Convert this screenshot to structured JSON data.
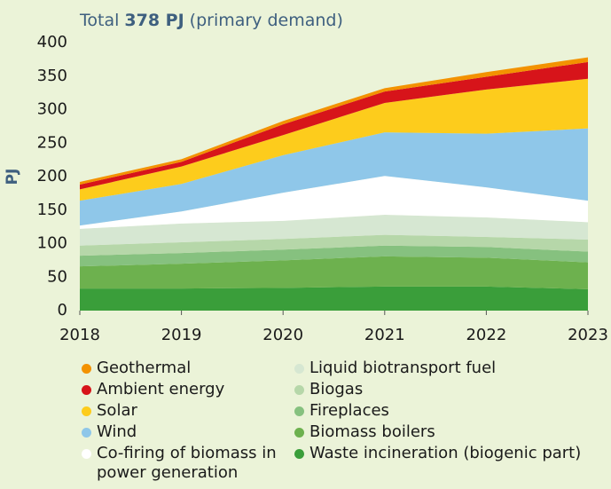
{
  "chart_data": {
    "type": "stacked_area",
    "title_prefix": "Total",
    "title_bold": "378 PJ",
    "title_suffix": "(primary demand)",
    "y_label": "PJ",
    "categories": [
      "2018",
      "2019",
      "2020",
      "2021",
      "2022",
      "2023"
    ],
    "ylim": [
      0,
      400
    ],
    "yticks": [
      0,
      50,
      100,
      150,
      200,
      250,
      300,
      350,
      400
    ],
    "series": [
      {
        "name": "Waste incineration (biogenic part)",
        "color": "#3a9e3a",
        "values": [
          33,
          33,
          34,
          36,
          36,
          32
        ]
      },
      {
        "name": "Biomass boilers",
        "color": "#6db14e",
        "values": [
          33,
          37,
          41,
          45,
          43,
          40
        ]
      },
      {
        "name": "Fireplaces",
        "color": "#86c17f",
        "values": [
          16,
          16,
          16,
          16,
          16,
          16
        ]
      },
      {
        "name": "Biogas",
        "color": "#b6d7a9",
        "values": [
          15,
          16,
          16,
          16,
          15,
          18
        ]
      },
      {
        "name": "Liquid biotransport fuel",
        "color": "#d6e7d2",
        "values": [
          25,
          28,
          27,
          30,
          29,
          26
        ]
      },
      {
        "name": "Co-firing of biomass in power generation",
        "color": "#ffffff",
        "values": [
          5,
          18,
          42,
          58,
          45,
          32
        ]
      },
      {
        "name": "Wind",
        "color": "#8fc7e9",
        "values": [
          37,
          41,
          56,
          65,
          80,
          108
        ]
      },
      {
        "name": "Solar",
        "color": "#fdcc1c",
        "values": [
          17,
          26,
          30,
          44,
          66,
          74
        ]
      },
      {
        "name": "Ambient energy",
        "color": "#d7141a",
        "values": [
          7,
          7,
          16,
          17,
          19,
          25
        ]
      },
      {
        "name": "Geothermal",
        "color": "#f39200",
        "values": [
          4,
          4,
          5,
          5,
          7,
          7
        ]
      }
    ]
  }
}
